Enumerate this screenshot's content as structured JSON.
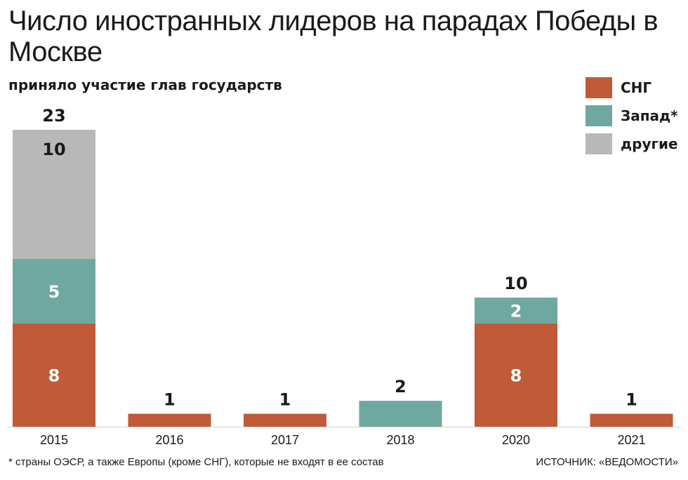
{
  "chart_data": {
    "type": "bar",
    "stacked": true,
    "title": "Число иностранных лидеров на парадах Победы в Москве",
    "subtitle": "приняло участие глав государств",
    "categories": [
      "2015",
      "2016",
      "2017",
      "2018",
      "2020",
      "2021"
    ],
    "series": [
      {
        "name": "СНГ",
        "color": "#c05a38",
        "values": [
          8,
          1,
          1,
          0,
          8,
          1
        ]
      },
      {
        "name": "Запад*",
        "color": "#6ea8a0",
        "values": [
          5,
          0,
          0,
          2,
          2,
          0
        ]
      },
      {
        "name": "другие",
        "color": "#b8b8b8",
        "values": [
          10,
          0,
          0,
          0,
          0,
          0
        ]
      }
    ],
    "totals": [
      "23",
      "1",
      "1",
      "2",
      "10",
      "1"
    ],
    "ylim": [
      0,
      23
    ],
    "grid": false,
    "legend": "top-right"
  },
  "footnote": "* страны ОЭСР, а также Европы (кроме СНГ), которые не входят в ее состав",
  "source": "ИСТОЧНИК: «ВЕДОМОСТИ»"
}
